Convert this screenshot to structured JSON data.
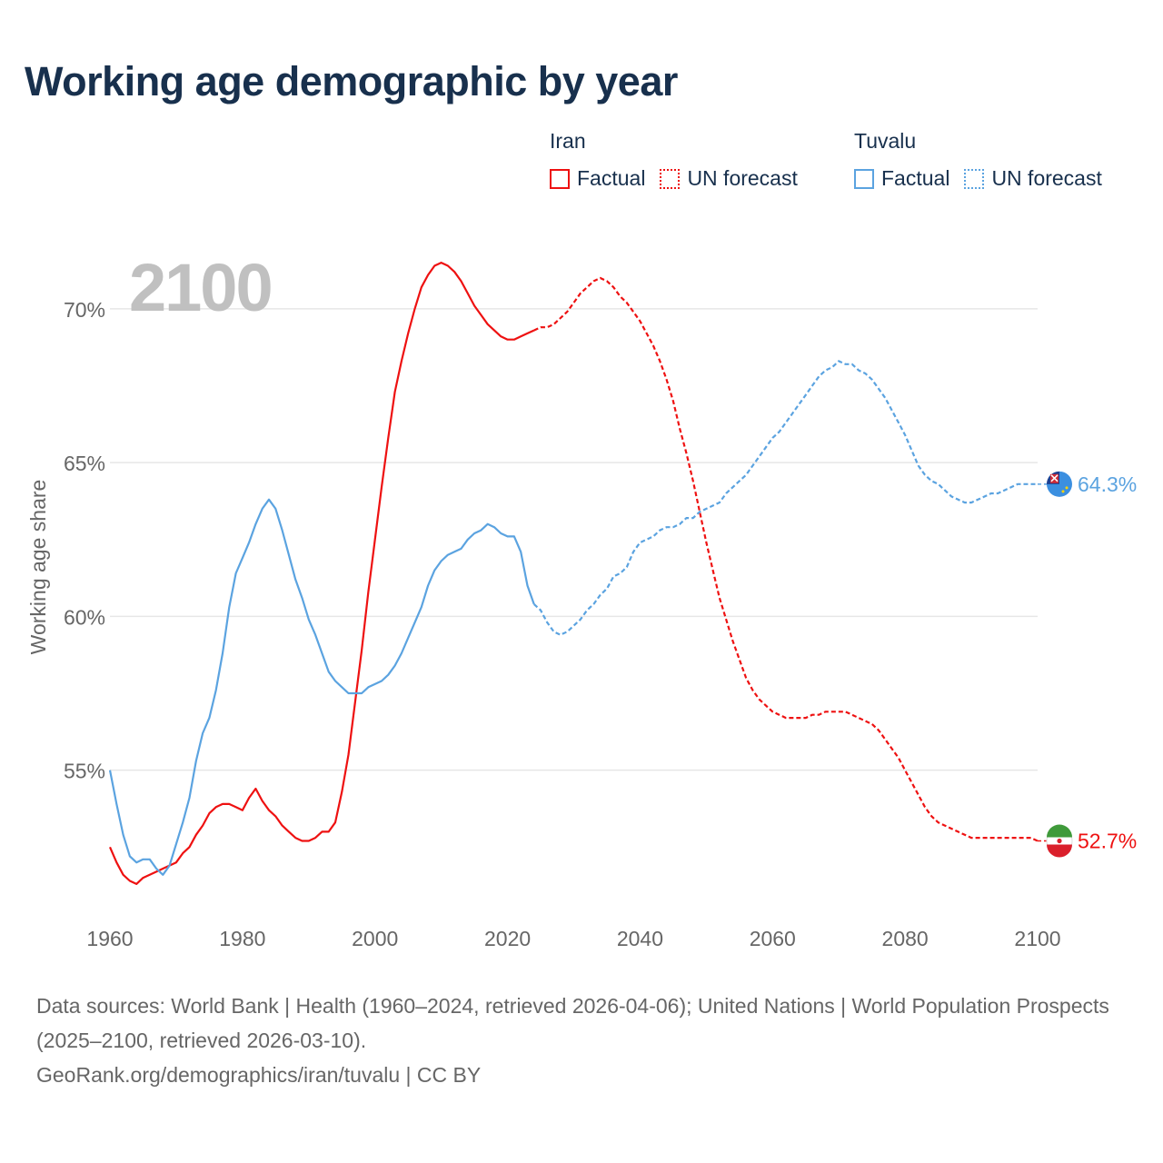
{
  "title": "Working age demographic by year",
  "footer": {
    "sources": "Data sources: World Bank | Health (1960–2024, retrieved 2026-04-06); United Nations | World Population Prospects (2025–2100, retrieved 2026-03-10).",
    "credit": "GeoRank.org/demographics/iran/tuvalu | CC BY"
  },
  "legend": [
    {
      "country": "Iran",
      "factual_label": "Factual",
      "forecast_label": "UN forecast",
      "color": "#ee1111"
    },
    {
      "country": "Tuvalu",
      "factual_label": "Factual",
      "forecast_label": "UN forecast",
      "color": "#5ba3e0"
    }
  ],
  "colors": {
    "iran": "#ee1111",
    "tuvalu": "#5ba3e0",
    "grid": "#e6e6e6",
    "axis_text": "#666666",
    "year_watermark": "#c0c0c0",
    "title": "#18304d"
  },
  "chart_data": {
    "type": "line",
    "title": "Working age demographic by year",
    "xlabel": "",
    "ylabel": "Working age share",
    "current_year_label": "2100",
    "xlim": [
      1960,
      2100
    ],
    "ylim": [
      50.5,
      72.3
    ],
    "x_ticks": [
      1960,
      1980,
      2000,
      2020,
      2040,
      2060,
      2080,
      2100
    ],
    "y_ticks": [
      55,
      60,
      65,
      70
    ],
    "y_tick_labels": [
      "55%",
      "60%",
      "65%",
      "70%"
    ],
    "grid": true,
    "factual_range": [
      1960,
      2024
    ],
    "forecast_range": [
      2025,
      2100
    ],
    "series": [
      {
        "name": "Iran",
        "end_label": "52.7%",
        "points": [
          [
            1960,
            52.5
          ],
          [
            1961,
            52.0
          ],
          [
            1962,
            51.6
          ],
          [
            1963,
            51.4
          ],
          [
            1964,
            51.3
          ],
          [
            1965,
            51.5
          ],
          [
            1966,
            51.6
          ],
          [
            1967,
            51.7
          ],
          [
            1968,
            51.8
          ],
          [
            1969,
            51.9
          ],
          [
            1970,
            52.0
          ],
          [
            1971,
            52.3
          ],
          [
            1972,
            52.5
          ],
          [
            1973,
            52.9
          ],
          [
            1974,
            53.2
          ],
          [
            1975,
            53.6
          ],
          [
            1976,
            53.8
          ],
          [
            1977,
            53.9
          ],
          [
            1978,
            53.9
          ],
          [
            1979,
            53.8
          ],
          [
            1980,
            53.7
          ],
          [
            1981,
            54.1
          ],
          [
            1982,
            54.4
          ],
          [
            1983,
            54.0
          ],
          [
            1984,
            53.7
          ],
          [
            1985,
            53.5
          ],
          [
            1986,
            53.2
          ],
          [
            1987,
            53.0
          ],
          [
            1988,
            52.8
          ],
          [
            1989,
            52.7
          ],
          [
            1990,
            52.7
          ],
          [
            1991,
            52.8
          ],
          [
            1992,
            53.0
          ],
          [
            1993,
            53.0
          ],
          [
            1994,
            53.3
          ],
          [
            1995,
            54.3
          ],
          [
            1996,
            55.5
          ],
          [
            1997,
            57.2
          ],
          [
            1998,
            58.9
          ],
          [
            1999,
            60.8
          ],
          [
            2000,
            62.5
          ],
          [
            2001,
            64.2
          ],
          [
            2002,
            65.8
          ],
          [
            2003,
            67.3
          ],
          [
            2004,
            68.3
          ],
          [
            2005,
            69.2
          ],
          [
            2006,
            70.0
          ],
          [
            2007,
            70.7
          ],
          [
            2008,
            71.1
          ],
          [
            2009,
            71.4
          ],
          [
            2010,
            71.5
          ],
          [
            2011,
            71.4
          ],
          [
            2012,
            71.2
          ],
          [
            2013,
            70.9
          ],
          [
            2014,
            70.5
          ],
          [
            2015,
            70.1
          ],
          [
            2016,
            69.8
          ],
          [
            2017,
            69.5
          ],
          [
            2018,
            69.3
          ],
          [
            2019,
            69.1
          ],
          [
            2020,
            69.0
          ],
          [
            2021,
            69.0
          ],
          [
            2022,
            69.1
          ],
          [
            2023,
            69.2
          ],
          [
            2024,
            69.3
          ],
          [
            2025,
            69.4
          ],
          [
            2026,
            69.4
          ],
          [
            2027,
            69.5
          ],
          [
            2028,
            69.7
          ],
          [
            2029,
            69.9
          ],
          [
            2030,
            70.2
          ],
          [
            2031,
            70.5
          ],
          [
            2032,
            70.7
          ],
          [
            2033,
            70.9
          ],
          [
            2034,
            71.0
          ],
          [
            2035,
            70.9
          ],
          [
            2036,
            70.7
          ],
          [
            2037,
            70.4
          ],
          [
            2038,
            70.2
          ],
          [
            2039,
            69.9
          ],
          [
            2040,
            69.6
          ],
          [
            2041,
            69.2
          ],
          [
            2042,
            68.8
          ],
          [
            2043,
            68.3
          ],
          [
            2044,
            67.7
          ],
          [
            2045,
            67.0
          ],
          [
            2046,
            66.1
          ],
          [
            2047,
            65.3
          ],
          [
            2048,
            64.4
          ],
          [
            2049,
            63.4
          ],
          [
            2050,
            62.4
          ],
          [
            2051,
            61.5
          ],
          [
            2052,
            60.6
          ],
          [
            2053,
            59.9
          ],
          [
            2054,
            59.2
          ],
          [
            2055,
            58.6
          ],
          [
            2056,
            58.0
          ],
          [
            2057,
            57.6
          ],
          [
            2058,
            57.3
          ],
          [
            2059,
            57.1
          ],
          [
            2060,
            56.9
          ],
          [
            2061,
            56.8
          ],
          [
            2062,
            56.7
          ],
          [
            2063,
            56.7
          ],
          [
            2064,
            56.7
          ],
          [
            2065,
            56.7
          ],
          [
            2066,
            56.8
          ],
          [
            2067,
            56.8
          ],
          [
            2068,
            56.9
          ],
          [
            2069,
            56.9
          ],
          [
            2070,
            56.9
          ],
          [
            2071,
            56.9
          ],
          [
            2072,
            56.8
          ],
          [
            2073,
            56.7
          ],
          [
            2074,
            56.6
          ],
          [
            2075,
            56.5
          ],
          [
            2076,
            56.3
          ],
          [
            2077,
            56.0
          ],
          [
            2078,
            55.7
          ],
          [
            2079,
            55.4
          ],
          [
            2080,
            55.0
          ],
          [
            2081,
            54.6
          ],
          [
            2082,
            54.2
          ],
          [
            2083,
            53.8
          ],
          [
            2084,
            53.5
          ],
          [
            2085,
            53.3
          ],
          [
            2086,
            53.2
          ],
          [
            2087,
            53.1
          ],
          [
            2088,
            53.0
          ],
          [
            2089,
            52.9
          ],
          [
            2090,
            52.8
          ],
          [
            2091,
            52.8
          ],
          [
            2092,
            52.8
          ],
          [
            2093,
            52.8
          ],
          [
            2094,
            52.8
          ],
          [
            2095,
            52.8
          ],
          [
            2096,
            52.8
          ],
          [
            2097,
            52.8
          ],
          [
            2098,
            52.8
          ],
          [
            2099,
            52.8
          ],
          [
            2100,
            52.7
          ]
        ]
      },
      {
        "name": "Tuvalu",
        "end_label": "64.3%",
        "points": [
          [
            1960,
            55.0
          ],
          [
            1961,
            53.9
          ],
          [
            1962,
            52.9
          ],
          [
            1963,
            52.2
          ],
          [
            1964,
            52.0
          ],
          [
            1965,
            52.1
          ],
          [
            1966,
            52.1
          ],
          [
            1967,
            51.8
          ],
          [
            1968,
            51.6
          ],
          [
            1969,
            51.9
          ],
          [
            1970,
            52.6
          ],
          [
            1971,
            53.3
          ],
          [
            1972,
            54.1
          ],
          [
            1973,
            55.3
          ],
          [
            1974,
            56.2
          ],
          [
            1975,
            56.7
          ],
          [
            1976,
            57.6
          ],
          [
            1977,
            58.8
          ],
          [
            1978,
            60.3
          ],
          [
            1979,
            61.4
          ],
          [
            1980,
            61.9
          ],
          [
            1981,
            62.4
          ],
          [
            1982,
            63.0
          ],
          [
            1983,
            63.5
          ],
          [
            1984,
            63.8
          ],
          [
            1985,
            63.5
          ],
          [
            1986,
            62.8
          ],
          [
            1987,
            62.0
          ],
          [
            1988,
            61.2
          ],
          [
            1989,
            60.6
          ],
          [
            1990,
            59.9
          ],
          [
            1991,
            59.4
          ],
          [
            1992,
            58.8
          ],
          [
            1993,
            58.2
          ],
          [
            1994,
            57.9
          ],
          [
            1995,
            57.7
          ],
          [
            1996,
            57.5
          ],
          [
            1997,
            57.5
          ],
          [
            1998,
            57.5
          ],
          [
            1999,
            57.7
          ],
          [
            2000,
            57.8
          ],
          [
            2001,
            57.9
          ],
          [
            2002,
            58.1
          ],
          [
            2003,
            58.4
          ],
          [
            2004,
            58.8
          ],
          [
            2005,
            59.3
          ],
          [
            2006,
            59.8
          ],
          [
            2007,
            60.3
          ],
          [
            2008,
            61.0
          ],
          [
            2009,
            61.5
          ],
          [
            2010,
            61.8
          ],
          [
            2011,
            62.0
          ],
          [
            2012,
            62.1
          ],
          [
            2013,
            62.2
          ],
          [
            2014,
            62.5
          ],
          [
            2015,
            62.7
          ],
          [
            2016,
            62.8
          ],
          [
            2017,
            63.0
          ],
          [
            2018,
            62.9
          ],
          [
            2019,
            62.7
          ],
          [
            2020,
            62.6
          ],
          [
            2021,
            62.6
          ],
          [
            2022,
            62.1
          ],
          [
            2023,
            61.0
          ],
          [
            2024,
            60.4
          ],
          [
            2025,
            60.2
          ],
          [
            2026,
            59.8
          ],
          [
            2027,
            59.5
          ],
          [
            2028,
            59.4
          ],
          [
            2029,
            59.5
          ],
          [
            2030,
            59.7
          ],
          [
            2031,
            59.9
          ],
          [
            2032,
            60.2
          ],
          [
            2033,
            60.4
          ],
          [
            2034,
            60.7
          ],
          [
            2035,
            60.9
          ],
          [
            2036,
            61.3
          ],
          [
            2037,
            61.4
          ],
          [
            2038,
            61.6
          ],
          [
            2039,
            62.1
          ],
          [
            2040,
            62.4
          ],
          [
            2041,
            62.5
          ],
          [
            2042,
            62.6
          ],
          [
            2043,
            62.8
          ],
          [
            2044,
            62.9
          ],
          [
            2045,
            62.9
          ],
          [
            2046,
            63.0
          ],
          [
            2047,
            63.2
          ],
          [
            2048,
            63.2
          ],
          [
            2049,
            63.4
          ],
          [
            2050,
            63.5
          ],
          [
            2051,
            63.6
          ],
          [
            2052,
            63.7
          ],
          [
            2053,
            64.0
          ],
          [
            2054,
            64.2
          ],
          [
            2055,
            64.4
          ],
          [
            2056,
            64.6
          ],
          [
            2057,
            64.9
          ],
          [
            2058,
            65.2
          ],
          [
            2059,
            65.5
          ],
          [
            2060,
            65.8
          ],
          [
            2061,
            66.0
          ],
          [
            2062,
            66.3
          ],
          [
            2063,
            66.6
          ],
          [
            2064,
            66.9
          ],
          [
            2065,
            67.2
          ],
          [
            2066,
            67.5
          ],
          [
            2067,
            67.8
          ],
          [
            2068,
            68.0
          ],
          [
            2069,
            68.1
          ],
          [
            2070,
            68.3
          ],
          [
            2071,
            68.2
          ],
          [
            2072,
            68.2
          ],
          [
            2073,
            68.0
          ],
          [
            2074,
            67.9
          ],
          [
            2075,
            67.7
          ],
          [
            2076,
            67.4
          ],
          [
            2077,
            67.1
          ],
          [
            2078,
            66.7
          ],
          [
            2079,
            66.3
          ],
          [
            2080,
            65.9
          ],
          [
            2081,
            65.4
          ],
          [
            2082,
            64.9
          ],
          [
            2083,
            64.6
          ],
          [
            2084,
            64.4
          ],
          [
            2085,
            64.3
          ],
          [
            2086,
            64.1
          ],
          [
            2087,
            63.9
          ],
          [
            2088,
            63.8
          ],
          [
            2089,
            63.7
          ],
          [
            2090,
            63.7
          ],
          [
            2091,
            63.8
          ],
          [
            2092,
            63.9
          ],
          [
            2093,
            64.0
          ],
          [
            2094,
            64.0
          ],
          [
            2095,
            64.1
          ],
          [
            2096,
            64.2
          ],
          [
            2097,
            64.3
          ],
          [
            2098,
            64.3
          ],
          [
            2099,
            64.3
          ],
          [
            2100,
            64.3
          ]
        ]
      }
    ]
  }
}
